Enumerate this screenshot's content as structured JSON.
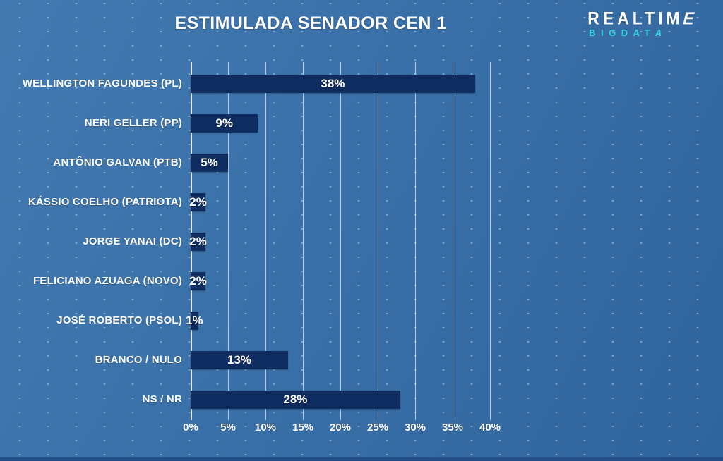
{
  "title": "ESTIMULADA SENADOR CEN 1",
  "logo": {
    "line1": "REALTIME",
    "line2": "BIGDATA",
    "line1_color": "#ffffff",
    "line2_color": "#35d6da"
  },
  "colors": {
    "background_light": "#437ab1",
    "background_dark": "#30649c",
    "bar": "#0e2c60",
    "grid_line": "#d6e7f5",
    "text": "#ffffff",
    "bottom_strip": "#254e86"
  },
  "chart_data": {
    "type": "bar",
    "orientation": "horizontal",
    "title": "ESTIMULADA SENADOR CEN 1",
    "categories": [
      "WELLINGTON FAGUNDES (PL)",
      "NERI GELLER (PP)",
      "ANTÔNIO GALVAN (PTB)",
      "KÁSSIO COELHO (PATRIOTA)",
      "JORGE YANAI (DC)",
      "FELICIANO AZUAGA (NOVO)",
      "JOSÉ ROBERTO (PSOL)",
      "BRANCO / NULO",
      "NS / NR"
    ],
    "values": [
      38,
      9,
      5,
      2,
      2,
      2,
      1,
      13,
      28
    ],
    "value_labels": [
      "38%",
      "9%",
      "5%",
      "2%",
      "2%",
      "2%",
      "1%",
      "13%",
      "28%"
    ],
    "x_ticks": [
      "0%",
      "5%",
      "10%",
      "15%",
      "20%",
      "25%",
      "30%",
      "35%",
      "40%"
    ],
    "x_tick_values": [
      0,
      5,
      10,
      15,
      20,
      25,
      30,
      35,
      40
    ],
    "xlim": [
      0,
      40
    ],
    "xlabel": "",
    "ylabel": "",
    "grid": "vertical-on",
    "legend": "none",
    "value_label_position": "center-inside-overflow",
    "bar_color": "#0e2c60"
  }
}
